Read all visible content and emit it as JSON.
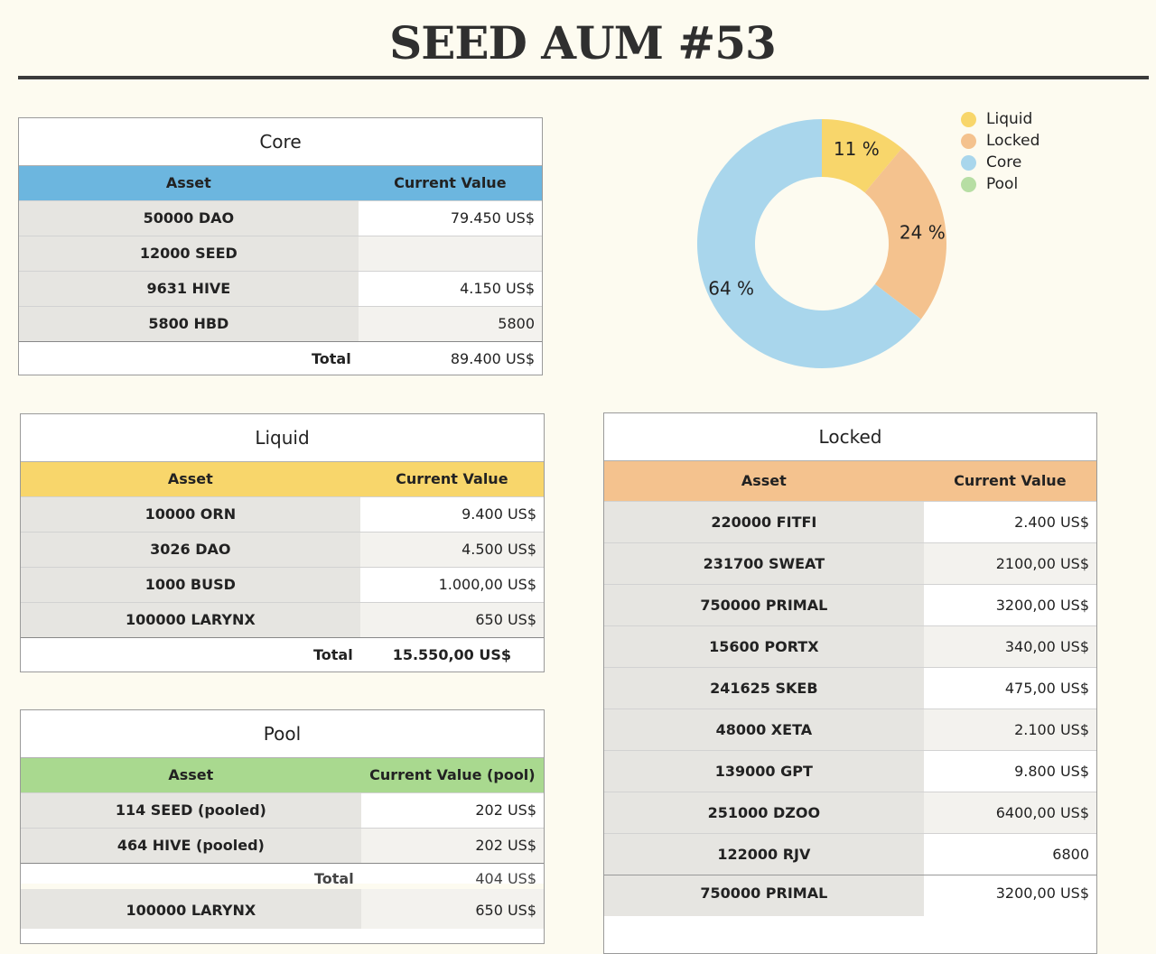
{
  "title": "SEED AUM #53",
  "colors": {
    "liquid": "#f8d66b",
    "locked": "#f4c28e",
    "core": "#a9d6ec",
    "pool": "#b7dea4",
    "core_header": "#6cb6df"
  },
  "legend": [
    "Liquid",
    "Locked",
    "Core",
    "Pool"
  ],
  "chart_data": {
    "type": "pie",
    "categories": [
      "Liquid",
      "Locked",
      "Core",
      "Pool"
    ],
    "values": [
      11,
      24,
      64,
      0
    ],
    "labels": [
      "11 %",
      "24 %",
      "64 %",
      ""
    ],
    "legend_position": "top-right"
  },
  "core": {
    "caption": "Core",
    "col1": "Asset",
    "col2": "Current Value",
    "rows": [
      {
        "asset": "50000 DAO",
        "value": "79.450 US$"
      },
      {
        "asset": "12000 SEED",
        "value": ""
      },
      {
        "asset": "9631 HIVE",
        "value": "4.150 US$"
      },
      {
        "asset": "5800 HBD",
        "value": "5800"
      }
    ],
    "total_label": "Total",
    "total_value": "89.400 US$"
  },
  "liquid": {
    "caption": "Liquid",
    "col1": "Asset",
    "col2": "Current Value",
    "rows": [
      {
        "asset": "10000 ORN",
        "value": "9.400 US$"
      },
      {
        "asset": "3026 DAO",
        "value": "4.500 US$"
      },
      {
        "asset": "1000 BUSD",
        "value": "1.000,00 US$"
      },
      {
        "asset": "100000 LARYNX",
        "value": "650 US$"
      }
    ],
    "total_label": "Total",
    "total_value": "15.550,00 US$"
  },
  "pool": {
    "caption": "Pool",
    "col1": "Asset",
    "col2": "Current Value (pool)",
    "rows": [
      {
        "asset": "114 SEED (pooled)",
        "value": "202 US$"
      },
      {
        "asset": "464 HIVE (pooled)",
        "value": "202 US$"
      }
    ],
    "total_label": "Total",
    "total_value": "404 US$",
    "extra": {
      "asset": "100000 LARYNX",
      "value": "650 US$"
    }
  },
  "locked": {
    "caption": "Locked",
    "col1": "Asset",
    "col2": "Current Value",
    "rows": [
      {
        "asset": "220000 FITFI",
        "value": "2.400 US$"
      },
      {
        "asset": "231700 SWEAT",
        "value": "2100,00 US$"
      },
      {
        "asset": "750000 PRIMAL",
        "value": "3200,00 US$"
      },
      {
        "asset": "15600 PORTX",
        "value": "340,00 US$"
      },
      {
        "asset": "241625 SKEB",
        "value": "475,00 US$"
      },
      {
        "asset": "48000 XETA",
        "value": "2.100 US$"
      },
      {
        "asset": "139000 GPT",
        "value": "9.800 US$"
      },
      {
        "asset": "251000 DZOO",
        "value": "6400,00 US$"
      },
      {
        "asset": "122000 RJV",
        "value": "6800"
      },
      {
        "asset": "750000 PRIMAL",
        "value": "3200,00 US$"
      }
    ]
  }
}
